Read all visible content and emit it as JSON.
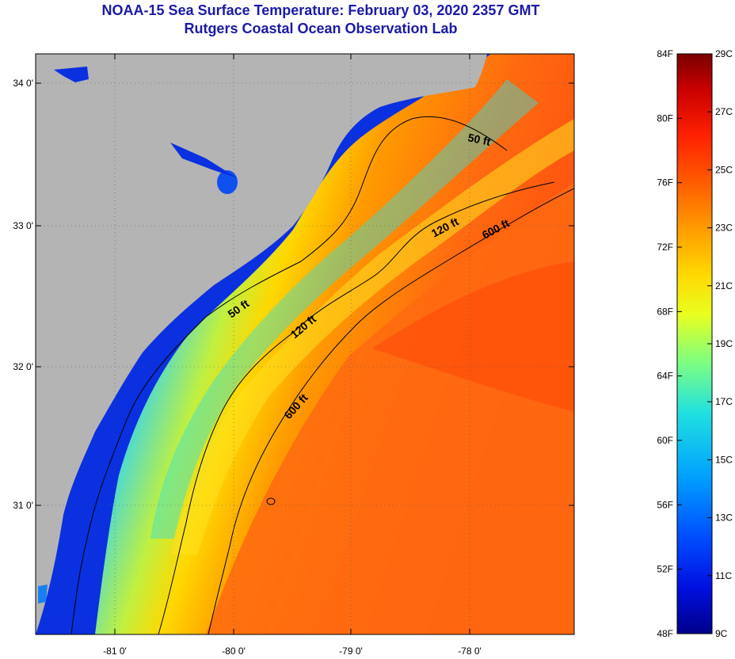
{
  "header": {
    "title": "NOAA-15 Sea Surface Temperature:  February 03, 2020 2357 GMT",
    "subtitle": "Rutgers Coastal Ocean Observation Lab"
  },
  "map": {
    "lat_ticks": [
      "34 0'",
      "33 0'",
      "32 0'",
      "31 0'"
    ],
    "lon_ticks": [
      "-81 0'",
      "-80 0'",
      "-79 0'",
      "-78 0'"
    ],
    "contours": [
      "50 ft",
      "120 ft",
      "600 ft",
      "50 ft",
      "120 ft",
      "600 ft"
    ],
    "land_color": "#b4b4b4"
  },
  "colorbar": {
    "f_labels": [
      "84F",
      "80F",
      "76F",
      "72F",
      "68F",
      "64F",
      "60F",
      "56F",
      "52F",
      "48F"
    ],
    "c_labels": [
      "29C",
      "27C",
      "25C",
      "23C",
      "21C",
      "19C",
      "17C",
      "15C",
      "13C",
      "11C",
      "9C"
    ],
    "colors": [
      "#7a0000",
      "#c80000",
      "#ff2000",
      "#ff5a00",
      "#ff9a00",
      "#ffd800",
      "#e8ff20",
      "#80ff80",
      "#20e0e0",
      "#00a0ff",
      "#0050ff",
      "#0010e0",
      "#00008a"
    ]
  }
}
